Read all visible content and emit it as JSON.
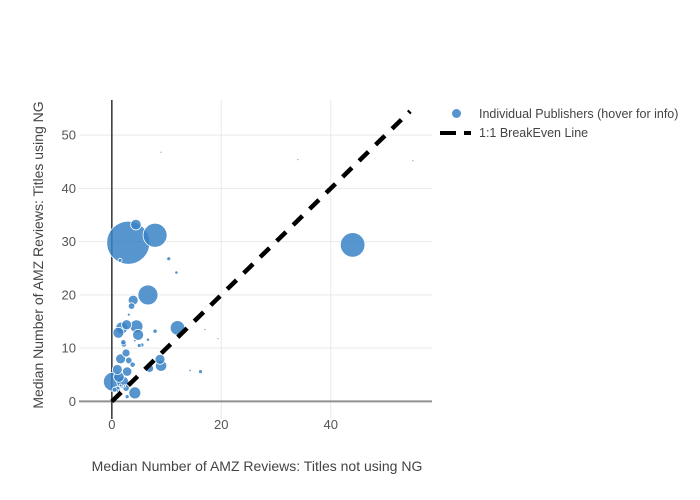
{
  "chart_data": {
    "type": "scatter",
    "title": "",
    "xlabel": "Median Number of AMZ Reviews: Titles not using NG",
    "ylabel": "Median Number of AMZ Reviews: Titles using NG",
    "xlim": [
      -6,
      58.5
    ],
    "ylim": [
      -3.3,
      56.6
    ],
    "xticks": [
      0,
      20,
      40
    ],
    "yticks": [
      0,
      10,
      20,
      30,
      40,
      50
    ],
    "grid": true,
    "legend_position": "top-right",
    "points_format": "[x, y, marker_radius_px]",
    "series": [
      {
        "name": "Individual Publishers (hover for info)",
        "type": "bubble",
        "color": "#3982c5",
        "opacity": 0.85,
        "points": [
          [
            3.0,
            29.8,
            21.5
          ],
          [
            4.4,
            33.2,
            5.3
          ],
          [
            7.9,
            31.2,
            12
          ],
          [
            1.5,
            26.5,
            2
          ],
          [
            10.4,
            26.8,
            2
          ],
          [
            11.8,
            24.2,
            1.7
          ],
          [
            44,
            29.4,
            12.3
          ],
          [
            9,
            46.8,
            1
          ],
          [
            34,
            45.4,
            1
          ],
          [
            55,
            45.2,
            1
          ],
          [
            6.6,
            20.0,
            10
          ],
          [
            3.9,
            19.0,
            5
          ],
          [
            3.6,
            17.9,
            3.3
          ],
          [
            3.1,
            16.3,
            1.5
          ],
          [
            12.0,
            13.8,
            7.3
          ],
          [
            1.8,
            13.8,
            6
          ],
          [
            2.7,
            14.4,
            5
          ],
          [
            4.5,
            14.1,
            6.5
          ],
          [
            1.2,
            12.9,
            5.5
          ],
          [
            4.8,
            12.5,
            5.5
          ],
          [
            7.9,
            13.2,
            2.2
          ],
          [
            6.6,
            11.6,
            1.7
          ],
          [
            2.2,
            10.7,
            2.7
          ],
          [
            5.5,
            10.6,
            2
          ],
          [
            17.0,
            13.5,
            1
          ],
          [
            19.4,
            11.8,
            1
          ],
          [
            17.2,
            17.8,
            0.8
          ],
          [
            2.1,
            11.1,
            2.7
          ],
          [
            4.2,
            11.4,
            1.3
          ],
          [
            5.0,
            10.5,
            2
          ],
          [
            2.6,
            9.1,
            4
          ],
          [
            1.6,
            8.0,
            5
          ],
          [
            3.1,
            7.7,
            3.3
          ],
          [
            3.8,
            6.9,
            2.7
          ],
          [
            1.0,
            6.0,
            5
          ],
          [
            2.8,
            5.6,
            4.7
          ],
          [
            1.3,
            4.6,
            5.3
          ],
          [
            0.2,
            3.7,
            9.5
          ],
          [
            2.0,
            3.6,
            6
          ],
          [
            2.6,
            2.5,
            3.3
          ],
          [
            1.0,
            2.3,
            3
          ],
          [
            4.2,
            1.6,
            6
          ],
          [
            8.8,
            7.9,
            5
          ],
          [
            9.0,
            6.7,
            5.7
          ],
          [
            6.9,
            6.2,
            4
          ],
          [
            14.3,
            5.8,
            1.2
          ],
          [
            16.2,
            5.6,
            2
          ],
          [
            0.5,
            2.2,
            2.5
          ],
          [
            1.6,
            3.0,
            1.5
          ],
          [
            2.3,
            2.9,
            1.2
          ],
          [
            1.4,
            2.1,
            1
          ],
          [
            2.8,
            0.9,
            2
          ]
        ]
      },
      {
        "name": "1:1 BreakEven Line",
        "type": "line",
        "style": "dashed",
        "color": "#000000",
        "x": [
          0,
          54.5
        ],
        "y": [
          0,
          54.5
        ]
      }
    ]
  },
  "legend": {
    "items": [
      {
        "label": "Individual Publishers (hover for info)",
        "marker": "dot",
        "color": "#5795ce"
      },
      {
        "label": "1:1 BreakEven Line",
        "marker": "dash",
        "color": "#000000"
      }
    ]
  },
  "colors": {
    "bubble_rendered": "#5795ce",
    "breakeven_line": "#000000",
    "grid": "#e9e9e9",
    "zeroline_x_axis": "#909090",
    "zeroline_y_axis": "#333333",
    "text": "#444444"
  }
}
